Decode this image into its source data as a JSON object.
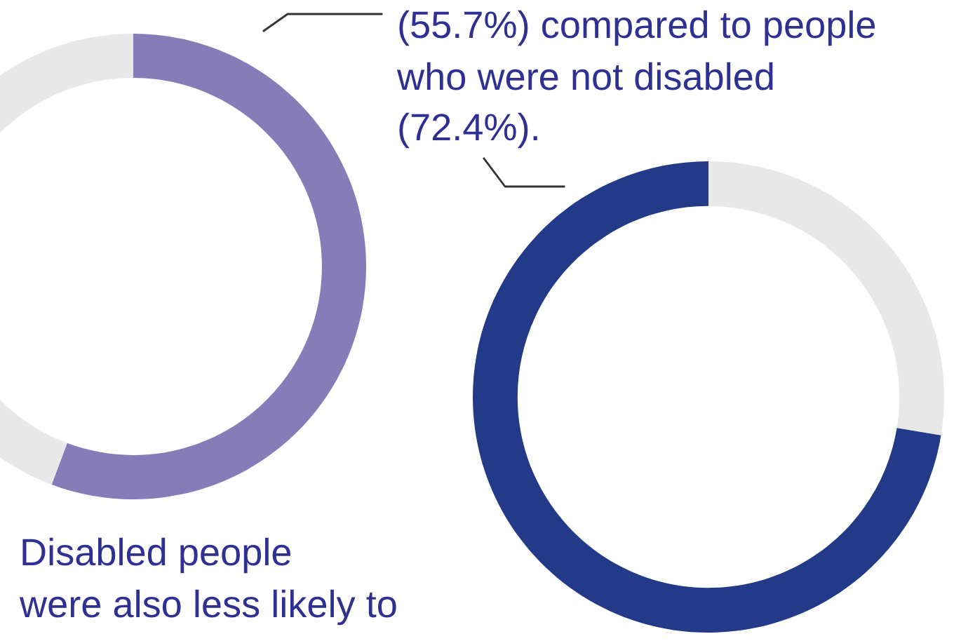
{
  "chart_data": [
    {
      "type": "donut",
      "categories": [
        null,
        null
      ],
      "values": [
        55.7,
        44.3
      ],
      "colors": [
        "#857cb8",
        "#e8e8e8"
      ],
      "annotations": [
        "(55.7%) compared to people",
        "who were not disabled",
        "(72.4%).",
        "Disabled people",
        "were also less likely to"
      ]
    },
    {
      "type": "donut",
      "categories": [
        null,
        null
      ],
      "values": [
        27.6,
        72.4
      ],
      "colors": [
        "#e8e8e8",
        "#233a88"
      ]
    }
  ]
}
